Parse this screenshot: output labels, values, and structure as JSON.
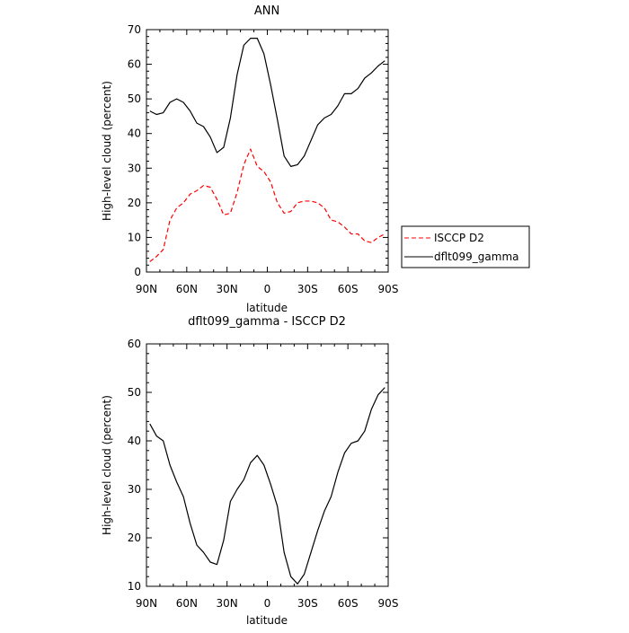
{
  "chart_data": [
    {
      "type": "line",
      "title": "ANN",
      "xlabel": "latitude",
      "ylabel": "High-level cloud (percent)",
      "xlim": [
        90,
        -90
      ],
      "ylim": [
        0,
        70
      ],
      "xticks": [
        90,
        60,
        30,
        0,
        -30,
        -60,
        -90
      ],
      "xtick_labels": [
        "90N",
        "60N",
        "30N",
        "0",
        "30S",
        "60S",
        "90S"
      ],
      "yticks": [
        0,
        10,
        20,
        30,
        40,
        50,
        60,
        70
      ],
      "ytick_labels": [
        "0",
        "10",
        "20",
        "30",
        "40",
        "50",
        "60",
        "70"
      ],
      "legend_position": "right",
      "series": [
        {
          "name": "ISCCP D2",
          "color": "#ff0000",
          "dash": "dashed",
          "x": [
            87.5,
            82.5,
            77.5,
            72.5,
            67.5,
            62.5,
            57.5,
            52.5,
            47.5,
            42.5,
            37.5,
            32.5,
            27.5,
            22.5,
            17.5,
            12.5,
            7.5,
            2.5,
            -2.5,
            -7.5,
            -12.5,
            -17.5,
            -22.5,
            -27.5,
            -32.5,
            -37.5,
            -42.5,
            -47.5,
            -52.5,
            -57.5,
            -62.5,
            -67.5,
            -72.5,
            -77.5,
            -82.5,
            -87.5
          ],
          "y": [
            3.0,
            4.5,
            6.5,
            15.0,
            18.5,
            20.0,
            22.5,
            23.5,
            25.0,
            24.5,
            21.0,
            16.5,
            17.0,
            23.0,
            31.0,
            35.5,
            30.5,
            29.0,
            26.0,
            20.0,
            17.0,
            17.5,
            20.0,
            20.5,
            20.5,
            20.0,
            18.5,
            15.0,
            14.5,
            13.0,
            11.0,
            11.0,
            9.0,
            8.5,
            10.0,
            11.0
          ]
        },
        {
          "name": "dflt099_gamma",
          "color": "#000000",
          "dash": "solid",
          "x": [
            87.5,
            82.5,
            77.5,
            72.5,
            67.5,
            62.5,
            57.5,
            52.5,
            47.5,
            42.5,
            37.5,
            32.5,
            27.5,
            22.5,
            17.5,
            12.5,
            7.5,
            2.5,
            -2.5,
            -7.5,
            -12.5,
            -17.5,
            -22.5,
            -27.5,
            -32.5,
            -37.5,
            -42.5,
            -47.5,
            -52.5,
            -57.5,
            -62.5,
            -67.5,
            -72.5,
            -77.5,
            -82.5,
            -87.5
          ],
          "y": [
            46.5,
            45.5,
            46.0,
            49.0,
            50.0,
            49.0,
            46.5,
            43.0,
            42.0,
            39.0,
            34.5,
            36.0,
            44.5,
            57.0,
            65.5,
            67.5,
            67.5,
            63.0,
            54.0,
            44.0,
            33.5,
            30.5,
            31.0,
            33.5,
            38.0,
            42.5,
            44.5,
            45.5,
            48.0,
            51.5,
            51.5,
            53.0,
            56.0,
            57.5,
            59.5,
            61.0
          ]
        }
      ]
    },
    {
      "type": "line",
      "title": "dflt099_gamma - ISCCP D2",
      "xlabel": "latitude",
      "ylabel": "High-level cloud (percent)",
      "xlim": [
        90,
        -90
      ],
      "ylim": [
        10,
        60
      ],
      "xticks": [
        90,
        60,
        30,
        0,
        -30,
        -60,
        -90
      ],
      "xtick_labels": [
        "90N",
        "60N",
        "30N",
        "0",
        "30S",
        "60S",
        "90S"
      ],
      "yticks": [
        10,
        20,
        30,
        40,
        50,
        60
      ],
      "ytick_labels": [
        "10",
        "20",
        "30",
        "40",
        "50",
        "60"
      ],
      "series": [
        {
          "color": "#000000",
          "dash": "solid",
          "x": [
            87.5,
            82.5,
            77.5,
            72.5,
            67.5,
            62.5,
            57.5,
            52.5,
            47.5,
            42.5,
            37.5,
            32.5,
            27.5,
            22.5,
            17.5,
            12.5,
            7.5,
            2.5,
            -2.5,
            -7.5,
            -12.5,
            -17.5,
            -22.5,
            -27.5,
            -32.5,
            -37.5,
            -42.5,
            -47.5,
            -52.5,
            -57.5,
            -62.5,
            -67.5,
            -72.5,
            -77.5,
            -82.5,
            -87.5
          ],
          "y": [
            43.5,
            41.0,
            40.0,
            35.0,
            31.5,
            28.5,
            23.0,
            18.5,
            17.0,
            15.0,
            14.5,
            19.5,
            27.5,
            30.0,
            32.0,
            35.5,
            37.0,
            35.0,
            31.0,
            26.5,
            17.0,
            12.0,
            10.5,
            12.5,
            17.0,
            21.5,
            25.5,
            28.5,
            33.5,
            37.5,
            39.5,
            40.0,
            42.0,
            46.5,
            49.5,
            51.0
          ]
        }
      ]
    }
  ]
}
